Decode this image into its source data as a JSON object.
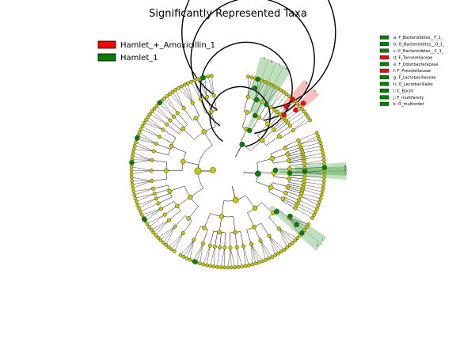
{
  "title": "Significantly Represented Taxa",
  "groups": [
    {
      "name": "Hamlet_+_Amoxicillin_1",
      "color": "#ff0000"
    },
    {
      "name": "Hamlet_1",
      "color": "#008000"
    }
  ],
  "node_color": "#c8c800",
  "clade_labels": [
    {
      "letter": "a",
      "label": "a: F_Bacteroidetes__F_1_",
      "color": "#008000",
      "angle": -72
    },
    {
      "letter": "b",
      "label": "b: O_Bacteroidetes__O_1_",
      "color": "#008000",
      "angle": -68
    },
    {
      "letter": "c",
      "label": "c: C_Bacteroidetes__C_1_",
      "color": "#008000",
      "angle": -64
    },
    {
      "letter": "d",
      "label": "d: F_Tannerellaceae",
      "color": "#ff0000",
      "angle": -48
    },
    {
      "letter": "e",
      "label": "e: F_Odoribacteraceae",
      "color": "#008000",
      "angle": -60
    },
    {
      "letter": "f",
      "label": "f: F_Prevotellaceae",
      "color": "#ff0000",
      "angle": -42
    },
    {
      "letter": "g",
      "label": "g: F_Lactobacillaceae",
      "color": "#008000",
      "angle": -2
    },
    {
      "letter": "h",
      "label": "h: O_Lactobacillales",
      "color": "#008000",
      "angle": 0
    },
    {
      "letter": "i",
      "label": "i: C_Bacilli",
      "color": "#008000",
      "angle": 2
    },
    {
      "letter": "j",
      "label": "j: F_multifamily",
      "color": "#008000",
      "angle": 36
    },
    {
      "letter": "k",
      "label": "k: O_multiorder",
      "color": "#008000",
      "angle": 40
    }
  ]
}
